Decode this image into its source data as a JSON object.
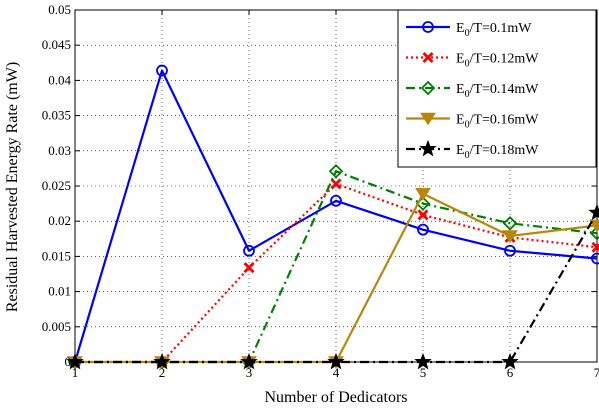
{
  "chart_data": {
    "type": "line",
    "title": "",
    "xlabel": "Number of Dedicators",
    "ylabel": "Residual Harvested Energy Rate (mW)",
    "x": [
      1,
      2,
      3,
      4,
      5,
      6,
      7
    ],
    "xlim": [
      1,
      7
    ],
    "ylim": [
      0,
      0.05
    ],
    "xticks": [
      "1",
      "2",
      "3",
      "4",
      "5",
      "6",
      "7"
    ],
    "yticks": [
      "0",
      "0.005",
      "0.01",
      "0.015",
      "0.02",
      "0.025",
      "0.03",
      "0.035",
      "0.04",
      "0.045",
      "0.05"
    ],
    "grid": true,
    "legend_position": "top-right",
    "series": [
      {
        "name_parts": [
          "E",
          "0",
          "/T=0.1mW"
        ],
        "color": "#0000ff",
        "line_style": "solid",
        "marker": "circle",
        "values": [
          0,
          0.0414,
          0.0158,
          0.0229,
          0.0188,
          0.0158,
          0.0147
        ]
      },
      {
        "name_parts": [
          "E",
          "0",
          "/T=0.12mW"
        ],
        "color": "#ff0000",
        "line_style": "dotted",
        "marker": "x",
        "values": [
          0,
          0,
          0.0134,
          0.0253,
          0.0209,
          0.0177,
          0.0163
        ]
      },
      {
        "name_parts": [
          "E",
          "0",
          "/T=0.14mW"
        ],
        "color": "#008000",
        "line_style": "dashdot",
        "marker": "diamond",
        "values": [
          0,
          0,
          0,
          0.0271,
          0.0225,
          0.0197,
          0.0183
        ]
      },
      {
        "name_parts": [
          "E",
          "0",
          "/T=0.16mW"
        ],
        "color": "#b8860b",
        "line_style": "solid",
        "marker": "triangle-down",
        "values": [
          0,
          0,
          0,
          0,
          0.0239,
          0.0179,
          0.0194
        ]
      },
      {
        "name_parts": [
          "E",
          "0",
          "/T=0.18mW"
        ],
        "color": "#000000",
        "line_style": "dashdot",
        "marker": "star",
        "values": [
          0,
          0,
          0,
          0,
          0,
          0,
          0.0212
        ]
      }
    ]
  }
}
